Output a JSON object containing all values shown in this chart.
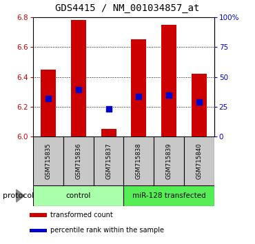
{
  "title": "GDS4415 / NM_001034857_at",
  "samples": [
    "GSM715835",
    "GSM715836",
    "GSM715837",
    "GSM715838",
    "GSM715839",
    "GSM715840"
  ],
  "bar_bottom": 6.0,
  "bar_tops": [
    6.45,
    6.78,
    6.05,
    6.65,
    6.75,
    6.42
  ],
  "blue_dots": [
    6.255,
    6.315,
    6.185,
    6.27,
    6.28,
    6.23
  ],
  "ylim": [
    6.0,
    6.8
  ],
  "yticks_left": [
    6.0,
    6.2,
    6.4,
    6.6,
    6.8
  ],
  "ytick_labels_right": [
    "0",
    "25",
    "50",
    "75",
    "100%"
  ],
  "bar_color": "#CC0000",
  "dot_color": "#0000CC",
  "bar_width": 0.5,
  "groups": [
    {
      "label": "control",
      "samples": [
        0,
        1,
        2
      ],
      "color": "#AAFFAA"
    },
    {
      "label": "miR-128 transfected",
      "samples": [
        3,
        4,
        5
      ],
      "color": "#55EE55"
    }
  ],
  "protocol_label": "protocol",
  "legend_items": [
    {
      "color": "#CC0000",
      "label": "transformed count"
    },
    {
      "color": "#0000CC",
      "label": "percentile rank within the sample"
    }
  ],
  "title_fontsize": 10,
  "axis_color_left": "#CC0000",
  "axis_color_right": "#0000CC",
  "sample_box_color": "#C8C8C8"
}
